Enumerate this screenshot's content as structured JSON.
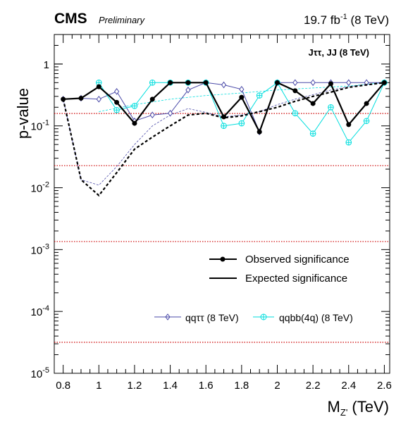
{
  "header": {
    "experiment": "CMS",
    "status": "Preliminary",
    "lumi_value": "19.7 fb",
    "lumi_exp": "-1",
    "energy": " (8 TeV)"
  },
  "chart_data": {
    "type": "line",
    "ylabel": "p-value",
    "xlabel_main": "M",
    "xlabel_sub": "Z'",
    "xlabel_unit": " (TeV)",
    "yscale": "log",
    "xlim": [
      0.75,
      2.63
    ],
    "ylim": [
      1e-05,
      3
    ],
    "x_ticks": [
      "0.8",
      "1",
      "1.2",
      "1.4",
      "1.6",
      "1.8",
      "2",
      "2.2",
      "2.4",
      "2.6"
    ],
    "y_ticks": [
      {
        "base": "10",
        "exp": "-5"
      },
      {
        "base": "10",
        "exp": "-4"
      },
      {
        "base": "10",
        "exp": "-3"
      },
      {
        "base": "10",
        "exp": "-2"
      },
      {
        "base": "10",
        "exp": "-1"
      },
      {
        "base": "1",
        "exp": ""
      }
    ],
    "annotation": "Jττ, JJ (8 TeV)",
    "sigma_lines": [
      0.1587,
      0.02275,
      0.00135,
      3.17e-05
    ],
    "legend": {
      "observed": "Observed significance",
      "expected": "Expected significance",
      "ch1": "qqττ (8 TeV)",
      "ch2": "qqbb(4q) (8 TeV)"
    },
    "colors": {
      "combined": "#000000",
      "ch1": "#4a4aa8",
      "ch2": "#00dede",
      "sigma": "#cc0000"
    },
    "series": [
      {
        "name": "Observed significance",
        "style": "observed",
        "x": [
          0.8,
          0.9,
          1.0,
          1.1,
          1.2,
          1.3,
          1.4,
          1.5,
          1.6,
          1.7,
          1.8,
          1.9,
          2.0,
          2.1,
          2.2,
          2.3,
          2.4,
          2.5,
          2.6
        ],
        "y": [
          0.27,
          0.28,
          0.43,
          0.24,
          0.11,
          0.27,
          0.5,
          0.5,
          0.5,
          0.14,
          0.29,
          0.08,
          0.5,
          0.37,
          0.23,
          0.48,
          0.105,
          0.23,
          0.5
        ]
      },
      {
        "name": "Expected significance",
        "style": "expected",
        "x": [
          0.8,
          0.9,
          1.0,
          1.1,
          1.2,
          1.3,
          1.4,
          1.5,
          1.6,
          1.7,
          1.8,
          1.9,
          2.0,
          2.1,
          2.2,
          2.3,
          2.4,
          2.5,
          2.6
        ],
        "y": [
          0.27,
          0.0135,
          0.0075,
          0.0175,
          0.042,
          0.066,
          0.1,
          0.15,
          0.16,
          0.135,
          0.145,
          0.17,
          0.2,
          0.25,
          0.3,
          0.35,
          0.42,
          0.46,
          0.5
        ]
      },
      {
        "name": "qqττ (8 TeV)",
        "style": "ch1",
        "x": [
          0.8,
          0.9,
          1.0,
          1.1,
          1.2,
          1.3,
          1.4,
          1.5,
          1.6,
          1.7,
          1.8,
          1.9,
          2.0,
          2.1,
          2.2,
          2.3,
          2.4,
          2.5,
          2.6
        ],
        "y": [
          0.27,
          0.28,
          0.27,
          0.36,
          0.12,
          0.15,
          0.16,
          0.38,
          0.5,
          0.46,
          0.39,
          0.08,
          0.5,
          0.5,
          0.5,
          0.5,
          0.5,
          0.5,
          0.5
        ]
      },
      {
        "name": "qqbb(4q) (8 TeV)",
        "style": "ch2",
        "x": [
          1.0,
          1.1,
          1.2,
          1.3,
          1.4,
          1.5,
          1.6,
          1.7,
          1.8,
          1.9,
          2.0,
          2.1,
          2.2,
          2.3,
          2.4,
          2.5,
          2.6
        ],
        "y": [
          0.5,
          0.18,
          0.21,
          0.5,
          0.5,
          0.5,
          0.5,
          0.1,
          0.11,
          0.31,
          0.5,
          0.16,
          0.075,
          0.2,
          0.054,
          0.12,
          0.5
        ]
      },
      {
        "name": "",
        "style": "exp-ch1",
        "x": [
          0.8,
          0.9,
          1.0,
          1.1,
          1.2,
          1.3,
          1.4,
          1.5,
          1.6,
          1.7,
          1.8,
          1.9,
          2.0,
          2.1,
          2.2,
          2.3,
          2.4,
          2.5,
          2.6
        ],
        "y": [
          0.27,
          0.0135,
          0.011,
          0.022,
          0.05,
          0.1,
          0.15,
          0.19,
          0.165,
          0.14,
          0.15,
          0.17,
          0.22,
          0.27,
          0.32,
          0.38,
          0.43,
          0.47,
          0.5
        ]
      },
      {
        "name": "",
        "style": "exp-ch2",
        "x": [
          1.0,
          1.2,
          1.4,
          1.6,
          1.8,
          2.0,
          2.2,
          2.4,
          2.6
        ],
        "y": [
          0.17,
          0.22,
          0.27,
          0.31,
          0.34,
          0.38,
          0.41,
          0.44,
          0.5
        ]
      }
    ]
  }
}
